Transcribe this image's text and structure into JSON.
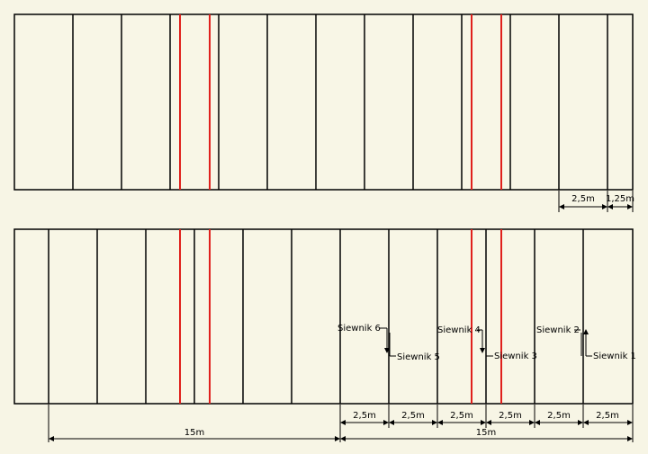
{
  "colors": {
    "background": "#f7f5e5",
    "panel_fill": "#f8f6e6",
    "line": "#000000",
    "highlight": "#e0201c"
  },
  "top_panel": {
    "dims": [
      {
        "label": "2,5m"
      },
      {
        "label": "1,25m"
      }
    ]
  },
  "bottom_panel": {
    "sprayers": [
      {
        "label": "Siewnik 6",
        "direction": "down"
      },
      {
        "label": "Siewnik 5",
        "direction": "down"
      },
      {
        "label": "Siewnik 4",
        "direction": "down"
      },
      {
        "label": "Siewnik 3",
        "direction": "down"
      },
      {
        "label": "Siewnik 2",
        "direction": "up"
      },
      {
        "label": "Siewnik 1",
        "direction": "up"
      }
    ],
    "small_dims": [
      "2,5m",
      "2,5m",
      "2,5m",
      "2,5m",
      "2,5m",
      "2,5m"
    ],
    "large_dims": [
      "15m",
      "15m"
    ]
  }
}
